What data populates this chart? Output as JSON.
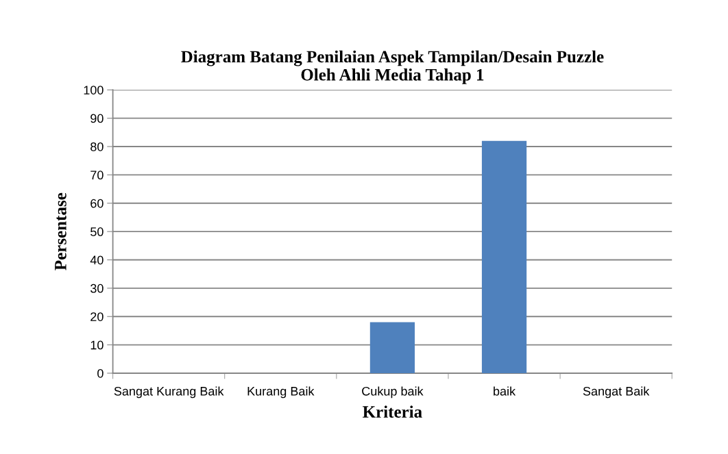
{
  "chart_data": {
    "type": "bar",
    "title": "Diagram Batang Penilaian Aspek Tampilan/Desain Puzzle\nOleh Ahli Media Tahap 1",
    "xlabel": "Kriteria",
    "ylabel": "Persentase",
    "categories": [
      "Sangat Kurang Baik",
      "Kurang Baik",
      "Cukup baik",
      "baik",
      "Sangat Baik"
    ],
    "values": [
      0,
      0,
      18,
      82,
      0
    ],
    "color": "#4f81bd",
    "ylim": [
      0,
      100
    ],
    "yticks": [
      0,
      10,
      20,
      30,
      40,
      50,
      60,
      70,
      80,
      90,
      100
    ],
    "grid": "y",
    "legend": false
  }
}
